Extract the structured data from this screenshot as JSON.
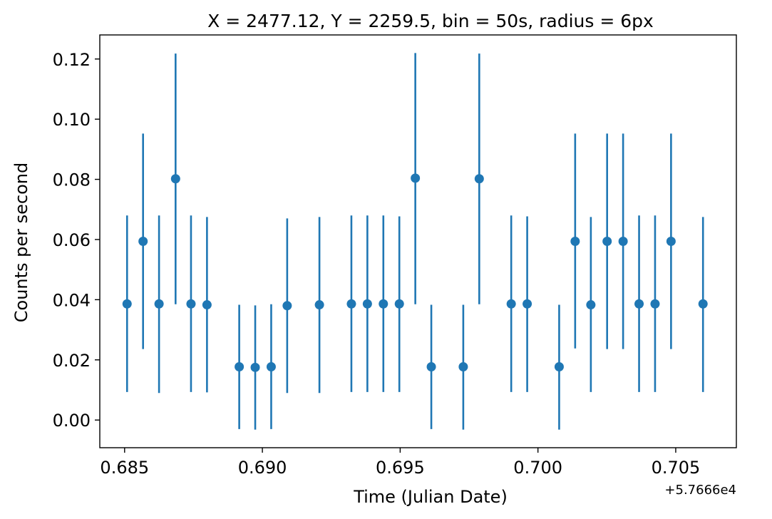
{
  "chart_data": {
    "type": "scatter",
    "title": "X = 2477.12, Y = 2259.5, bin = 50s, radius = 6px",
    "xlabel": "Time (Julian Date)",
    "ylabel": "Counts per second",
    "x_offset_label": "+5.7666e4",
    "xlim": [
      0.6841,
      0.7072
    ],
    "ylim": [
      -0.0092,
      0.128
    ],
    "xticks": [
      0.685,
      0.69,
      0.695,
      0.7,
      0.705
    ],
    "xtick_labels": [
      "0.685",
      "0.690",
      "0.695",
      "0.700",
      "0.705"
    ],
    "yticks": [
      0.0,
      0.02,
      0.04,
      0.06,
      0.08,
      0.1,
      0.12
    ],
    "ytick_labels": [
      "0.00",
      "0.02",
      "0.04",
      "0.06",
      "0.08",
      "0.10",
      "0.12"
    ],
    "color": "#1f77b4",
    "grid": false,
    "series": [
      {
        "points": [
          {
            "x": 0.68509,
            "y": 0.0386,
            "lo": 0.0093,
            "hi": 0.068
          },
          {
            "x": 0.68567,
            "y": 0.0594,
            "lo": 0.0236,
            "hi": 0.0952
          },
          {
            "x": 0.68625,
            "y": 0.0386,
            "lo": 0.009,
            "hi": 0.068
          },
          {
            "x": 0.68685,
            "y": 0.0802,
            "lo": 0.0385,
            "hi": 0.1218
          },
          {
            "x": 0.68741,
            "y": 0.0386,
            "lo": 0.0093,
            "hi": 0.068
          },
          {
            "x": 0.68799,
            "y": 0.0383,
            "lo": 0.0092,
            "hi": 0.0675
          },
          {
            "x": 0.68916,
            "y": 0.0177,
            "lo": -0.003,
            "hi": 0.0383
          },
          {
            "x": 0.68974,
            "y": 0.0175,
            "lo": -0.0032,
            "hi": 0.0381
          },
          {
            "x": 0.69032,
            "y": 0.0177,
            "lo": -0.003,
            "hi": 0.0385
          },
          {
            "x": 0.6909,
            "y": 0.038,
            "lo": 0.009,
            "hi": 0.067
          },
          {
            "x": 0.69207,
            "y": 0.0383,
            "lo": 0.009,
            "hi": 0.0675
          },
          {
            "x": 0.69323,
            "y": 0.0386,
            "lo": 0.0093,
            "hi": 0.068
          },
          {
            "x": 0.69381,
            "y": 0.0386,
            "lo": 0.0093,
            "hi": 0.068
          },
          {
            "x": 0.69439,
            "y": 0.0386,
            "lo": 0.0093,
            "hi": 0.068
          },
          {
            "x": 0.69497,
            "y": 0.0386,
            "lo": 0.0093,
            "hi": 0.0677
          },
          {
            "x": 0.69555,
            "y": 0.0804,
            "lo": 0.0385,
            "hi": 0.122
          },
          {
            "x": 0.69613,
            "y": 0.0177,
            "lo": -0.003,
            "hi": 0.0383
          },
          {
            "x": 0.69729,
            "y": 0.0177,
            "lo": -0.0032,
            "hi": 0.0383
          },
          {
            "x": 0.69787,
            "y": 0.0802,
            "lo": 0.0385,
            "hi": 0.1218
          },
          {
            "x": 0.69903,
            "y": 0.0386,
            "lo": 0.0093,
            "hi": 0.068
          },
          {
            "x": 0.69961,
            "y": 0.0386,
            "lo": 0.0093,
            "hi": 0.0677
          },
          {
            "x": 0.70077,
            "y": 0.0177,
            "lo": -0.0032,
            "hi": 0.0383
          },
          {
            "x": 0.70135,
            "y": 0.0594,
            "lo": 0.0238,
            "hi": 0.0952
          },
          {
            "x": 0.70192,
            "y": 0.0383,
            "lo": 0.0093,
            "hi": 0.0675
          },
          {
            "x": 0.70251,
            "y": 0.0594,
            "lo": 0.0236,
            "hi": 0.0952
          },
          {
            "x": 0.70309,
            "y": 0.0594,
            "lo": 0.0236,
            "hi": 0.0952
          },
          {
            "x": 0.70367,
            "y": 0.0386,
            "lo": 0.0093,
            "hi": 0.068
          },
          {
            "x": 0.70425,
            "y": 0.0386,
            "lo": 0.0093,
            "hi": 0.068
          },
          {
            "x": 0.70483,
            "y": 0.0594,
            "lo": 0.0236,
            "hi": 0.0952
          },
          {
            "x": 0.70599,
            "y": 0.0386,
            "lo": 0.0093,
            "hi": 0.0675
          }
        ]
      }
    ]
  }
}
